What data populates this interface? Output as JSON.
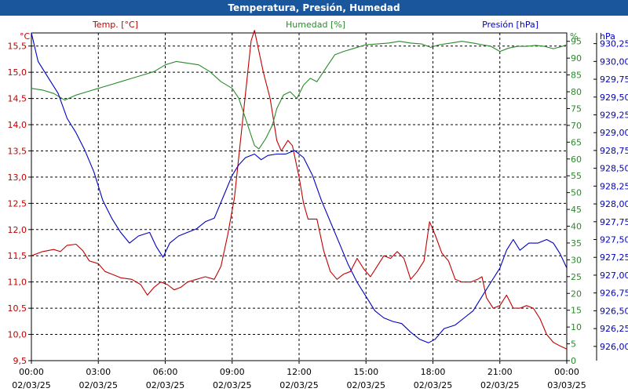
{
  "title": "Temperatura, Presión, Humedad",
  "chart_data": {
    "type": "line",
    "grid": true,
    "colors": {
      "temperature": "#c00000",
      "humidity": "#2a8a2a",
      "pressure": "#0000c0",
      "title_bg": "#19569b"
    },
    "axes": {
      "temperature": {
        "label": "Temp. [°C]",
        "unit": "°C",
        "ylim": [
          9.5,
          15.75
        ],
        "ticks": [
          "9,5",
          "10,0",
          "10,5",
          "11,0",
          "11,5",
          "12,0",
          "12,5",
          "13,0",
          "13,5",
          "14,0",
          "14,5",
          "15,0",
          "15,5"
        ]
      },
      "humidity": {
        "label": "Humedad [%]",
        "unit": "%",
        "ylim": [
          0,
          97.5
        ],
        "ticks": [
          "0",
          "5",
          "10",
          "15",
          "20",
          "25",
          "30",
          "35",
          "40",
          "45",
          "50",
          "55",
          "60",
          "65",
          "70",
          "75",
          "80",
          "85",
          "90",
          "95"
        ]
      },
      "pressure": {
        "label": "Presión [hPa]",
        "unit": "hPa",
        "ylim": [
          925.8,
          930.4
        ],
        "ticks": [
          "926,00",
          "926,25",
          "926,50",
          "926,75",
          "927,00",
          "927,25",
          "927,50",
          "927,75",
          "928,00",
          "928,25",
          "928,50",
          "928,75",
          "929,00",
          "929,25",
          "929,50",
          "929,75",
          "930,00",
          "930,25"
        ]
      }
    },
    "x_ticks": [
      {
        "time": "00:00",
        "date": "02/03/25"
      },
      {
        "time": "03:00",
        "date": "02/03/25"
      },
      {
        "time": "06:00",
        "date": "02/03/25"
      },
      {
        "time": "09:00",
        "date": "02/03/25"
      },
      {
        "time": "12:00",
        "date": "02/03/25"
      },
      {
        "time": "15:00",
        "date": "02/03/25"
      },
      {
        "time": "18:00",
        "date": "02/03/25"
      },
      {
        "time": "21:00",
        "date": "02/03/25"
      },
      {
        "time": "00:00",
        "date": "03/03/25"
      }
    ],
    "x_unit": "hours",
    "series": [
      {
        "name": "Temp. [°C]",
        "axis": "temperature",
        "points": [
          [
            0,
            11.5
          ],
          [
            0.5,
            11.58
          ],
          [
            1,
            11.62
          ],
          [
            1.3,
            11.58
          ],
          [
            1.6,
            11.7
          ],
          [
            2,
            11.72
          ],
          [
            2.3,
            11.6
          ],
          [
            2.6,
            11.4
          ],
          [
            3,
            11.35
          ],
          [
            3.3,
            11.2
          ],
          [
            3.6,
            11.15
          ],
          [
            4,
            11.08
          ],
          [
            4.5,
            11.05
          ],
          [
            4.9,
            10.95
          ],
          [
            5.2,
            10.75
          ],
          [
            5.5,
            10.9
          ],
          [
            5.8,
            11.0
          ],
          [
            6.1,
            10.95
          ],
          [
            6.4,
            10.85
          ],
          [
            6.7,
            10.9
          ],
          [
            7,
            11.0
          ],
          [
            7.4,
            11.05
          ],
          [
            7.8,
            11.1
          ],
          [
            8.2,
            11.05
          ],
          [
            8.5,
            11.3
          ],
          [
            8.8,
            11.9
          ],
          [
            9.1,
            12.6
          ],
          [
            9.4,
            13.8
          ],
          [
            9.7,
            15.0
          ],
          [
            9.85,
            15.6
          ],
          [
            10,
            15.8
          ],
          [
            10.2,
            15.4
          ],
          [
            10.4,
            15.0
          ],
          [
            10.7,
            14.5
          ],
          [
            11,
            13.7
          ],
          [
            11.2,
            13.5
          ],
          [
            11.5,
            13.7
          ],
          [
            11.7,
            13.6
          ],
          [
            12,
            13.0
          ],
          [
            12.2,
            12.5
          ],
          [
            12.4,
            12.2
          ],
          [
            12.8,
            12.2
          ],
          [
            13.1,
            11.6
          ],
          [
            13.4,
            11.2
          ],
          [
            13.7,
            11.05
          ],
          [
            14,
            11.15
          ],
          [
            14.3,
            11.2
          ],
          [
            14.6,
            11.45
          ],
          [
            14.9,
            11.25
          ],
          [
            15.2,
            11.1
          ],
          [
            15.5,
            11.3
          ],
          [
            15.8,
            11.5
          ],
          [
            16.1,
            11.45
          ],
          [
            16.4,
            11.58
          ],
          [
            16.7,
            11.45
          ],
          [
            17,
            11.05
          ],
          [
            17.3,
            11.2
          ],
          [
            17.6,
            11.4
          ],
          [
            17.85,
            12.15
          ],
          [
            18.1,
            11.9
          ],
          [
            18.4,
            11.55
          ],
          [
            18.7,
            11.4
          ],
          [
            19,
            11.05
          ],
          [
            19.3,
            11.0
          ],
          [
            19.7,
            11.0
          ],
          [
            20,
            11.05
          ],
          [
            20.2,
            11.1
          ],
          [
            20.4,
            10.7
          ],
          [
            20.7,
            10.5
          ],
          [
            21,
            10.55
          ],
          [
            21.3,
            10.75
          ],
          [
            21.6,
            10.5
          ],
          [
            21.9,
            10.5
          ],
          [
            22.2,
            10.55
          ],
          [
            22.5,
            10.5
          ],
          [
            22.8,
            10.3
          ],
          [
            23.1,
            10.0
          ],
          [
            23.4,
            9.85
          ],
          [
            23.7,
            9.78
          ],
          [
            24,
            9.72
          ]
        ]
      },
      {
        "name": "Humedad [%]",
        "axis": "humidity",
        "points": [
          [
            0,
            81
          ],
          [
            0.5,
            80.5
          ],
          [
            1,
            79.5
          ],
          [
            1.5,
            77.5
          ],
          [
            2,
            79
          ],
          [
            2.5,
            80
          ],
          [
            3,
            81
          ],
          [
            3.5,
            82
          ],
          [
            4,
            83
          ],
          [
            4.5,
            84
          ],
          [
            5,
            85
          ],
          [
            5.5,
            86
          ],
          [
            6,
            88
          ],
          [
            6.5,
            89
          ],
          [
            7,
            88.5
          ],
          [
            7.5,
            88
          ],
          [
            8,
            86
          ],
          [
            8.5,
            83
          ],
          [
            9,
            81
          ],
          [
            9.3,
            78
          ],
          [
            9.6,
            72
          ],
          [
            9.8,
            68
          ],
          [
            10,
            64
          ],
          [
            10.2,
            63
          ],
          [
            10.5,
            66
          ],
          [
            10.8,
            70
          ],
          [
            11,
            75
          ],
          [
            11.3,
            79
          ],
          [
            11.6,
            80
          ],
          [
            11.9,
            78
          ],
          [
            12.2,
            82
          ],
          [
            12.5,
            84
          ],
          [
            12.8,
            83
          ],
          [
            13,
            85
          ],
          [
            13.3,
            88
          ],
          [
            13.6,
            91
          ],
          [
            14,
            92
          ],
          [
            14.5,
            93
          ],
          [
            15,
            94
          ],
          [
            15.5,
            94.2
          ],
          [
            16,
            94.5
          ],
          [
            16.5,
            95
          ],
          [
            17,
            94.5
          ],
          [
            17.5,
            94.2
          ],
          [
            17.9,
            93.2
          ],
          [
            18.3,
            94
          ],
          [
            18.8,
            94.5
          ],
          [
            19.3,
            95
          ],
          [
            19.8,
            94.5
          ],
          [
            20.2,
            94
          ],
          [
            20.6,
            93.5
          ],
          [
            21,
            92
          ],
          [
            21.4,
            93
          ],
          [
            21.8,
            93.5
          ],
          [
            22.2,
            93.5
          ],
          [
            22.6,
            93.8
          ],
          [
            23,
            93.5
          ],
          [
            23.4,
            92.8
          ],
          [
            23.8,
            93.5
          ],
          [
            24,
            94
          ]
        ]
      },
      {
        "name": "Presión [hPa]",
        "axis": "pressure",
        "points": [
          [
            0,
            930.4
          ],
          [
            0.3,
            930.0
          ],
          [
            0.8,
            929.75
          ],
          [
            1.2,
            929.55
          ],
          [
            1.6,
            929.2
          ],
          [
            2,
            929.0
          ],
          [
            2.4,
            928.75
          ],
          [
            2.8,
            928.45
          ],
          [
            3.2,
            928.05
          ],
          [
            3.6,
            927.8
          ],
          [
            4,
            927.6
          ],
          [
            4.4,
            927.45
          ],
          [
            4.8,
            927.55
          ],
          [
            5.3,
            927.6
          ],
          [
            5.6,
            927.4
          ],
          [
            5.9,
            927.25
          ],
          [
            6.2,
            927.45
          ],
          [
            6.6,
            927.55
          ],
          [
            7,
            927.6
          ],
          [
            7.4,
            927.65
          ],
          [
            7.8,
            927.75
          ],
          [
            8.2,
            927.8
          ],
          [
            8.6,
            928.1
          ],
          [
            9,
            928.4
          ],
          [
            9.3,
            928.55
          ],
          [
            9.6,
            928.65
          ],
          [
            10,
            928.7
          ],
          [
            10.3,
            928.62
          ],
          [
            10.6,
            928.68
          ],
          [
            11,
            928.7
          ],
          [
            11.4,
            928.7
          ],
          [
            11.8,
            928.75
          ],
          [
            12.2,
            928.65
          ],
          [
            12.6,
            928.4
          ],
          [
            13,
            928.05
          ],
          [
            13.4,
            927.75
          ],
          [
            13.8,
            927.45
          ],
          [
            14.2,
            927.15
          ],
          [
            14.6,
            926.9
          ],
          [
            15,
            926.7
          ],
          [
            15.4,
            926.5
          ],
          [
            15.8,
            926.4
          ],
          [
            16.2,
            926.35
          ],
          [
            16.6,
            926.32
          ],
          [
            17,
            926.2
          ],
          [
            17.4,
            926.1
          ],
          [
            17.8,
            926.05
          ],
          [
            18.1,
            926.1
          ],
          [
            18.5,
            926.25
          ],
          [
            19,
            926.3
          ],
          [
            19.4,
            926.4
          ],
          [
            19.8,
            926.5
          ],
          [
            20.2,
            926.7
          ],
          [
            20.6,
            926.9
          ],
          [
            21,
            927.1
          ],
          [
            21.3,
            927.35
          ],
          [
            21.6,
            927.5
          ],
          [
            21.9,
            927.35
          ],
          [
            22.3,
            927.45
          ],
          [
            22.7,
            927.45
          ],
          [
            23.1,
            927.5
          ],
          [
            23.4,
            927.45
          ],
          [
            23.7,
            927.3
          ],
          [
            24,
            927.1
          ]
        ]
      }
    ]
  }
}
